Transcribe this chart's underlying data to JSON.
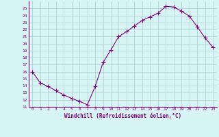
{
  "x": [
    0,
    1,
    2,
    3,
    4,
    5,
    6,
    7,
    8,
    9,
    10,
    11,
    12,
    13,
    14,
    15,
    16,
    17,
    18,
    19,
    20,
    21,
    22,
    23
  ],
  "y": [
    16.0,
    14.4,
    13.9,
    13.3,
    12.7,
    12.2,
    11.8,
    11.3,
    13.9,
    17.3,
    19.1,
    21.0,
    21.7,
    22.5,
    23.3,
    23.8,
    24.3,
    25.3,
    25.2,
    24.6,
    23.9,
    22.4,
    20.8,
    19.5
  ],
  "line_color": "#800080",
  "marker": "+",
  "marker_size": 4,
  "bg_color": "#d8f5f5",
  "grid_color": "#aacccc",
  "xlabel": "Windchill (Refroidissement éolien,°C)",
  "xlabel_color": "#800080",
  "tick_color": "#800080",
  "spine_color": "#800080",
  "ylim": [
    11,
    26
  ],
  "yticks": [
    11,
    12,
    13,
    14,
    15,
    16,
    17,
    18,
    19,
    20,
    21,
    22,
    23,
    24,
    25
  ],
  "xlim": [
    -0.5,
    23.5
  ],
  "xticks": [
    0,
    1,
    2,
    3,
    4,
    5,
    6,
    7,
    8,
    9,
    10,
    11,
    12,
    13,
    14,
    15,
    16,
    17,
    18,
    19,
    20,
    21,
    22,
    23
  ]
}
